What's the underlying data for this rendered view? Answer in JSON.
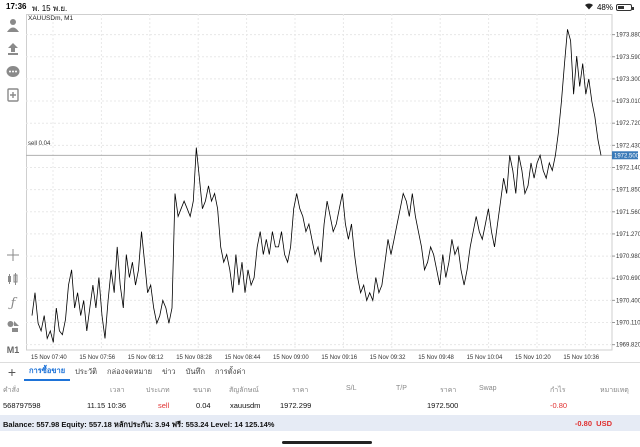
{
  "status": {
    "time": "17:36",
    "date": "พ. 15 พ.ย.",
    "battery": "48%",
    "battery_level": 0.48
  },
  "chart": {
    "symbol": "XAUUSDm, M1",
    "order_line_label": "sell 0.04",
    "current_price": "1972.500",
    "colors": {
      "line": "#000000",
      "price_box": "#3a7ab8",
      "order_line": "#b0b0b0"
    }
  },
  "chart_data": {
    "type": "line",
    "title": "",
    "xlabel": "",
    "ylabel": "",
    "ylim": [
      1969.75,
      1974.15
    ],
    "y_ticks": [
      "1973.880",
      "1973.590",
      "1973.300",
      "1973.010",
      "1972.720",
      "1972.430",
      "1972.140",
      "1971.850",
      "1971.560",
      "1971.270",
      "1970.980",
      "1970.690",
      "1970.400",
      "1970.110",
      "1969.820"
    ],
    "y_tick_values": [
      1973.88,
      1973.59,
      1973.3,
      1973.01,
      1972.72,
      1972.43,
      1972.14,
      1971.85,
      1971.56,
      1971.27,
      1970.98,
      1970.69,
      1970.4,
      1970.11,
      1969.82
    ],
    "x_ticks": [
      "15 Nov 07:40",
      "15 Nov 07:56",
      "15 Nov 08:12",
      "15 Nov 08:28",
      "15 Nov 08:44",
      "15 Nov 09:00",
      "15 Nov 09:16",
      "15 Nov 09:32",
      "15 Nov 09:48",
      "15 Nov 10:04",
      "15 Nov 10:20",
      "15 Nov 10:36"
    ],
    "order_price": 1972.299,
    "series": [
      {
        "values": [
          1970.2,
          1970.5,
          1970.1,
          1970.0,
          1970.2,
          1969.9,
          1970.0,
          1969.85,
          1970.3,
          1970.0,
          1969.95,
          1970.15,
          1970.6,
          1970.8,
          1970.3,
          1970.5,
          1970.2,
          1970.4,
          1970.0,
          1970.3,
          1970.6,
          1970.3,
          1970.7,
          1970.2,
          1969.9,
          1970.4,
          1970.8,
          1970.5,
          1971.1,
          1970.6,
          1970.3,
          1971.0,
          1970.7,
          1970.9,
          1970.6,
          1970.8,
          1971.3,
          1970.9,
          1970.5,
          1970.6,
          1970.3,
          1970.1,
          1970.2,
          1970.4,
          1970.3,
          1970.1,
          1970.3,
          1971.8,
          1971.5,
          1971.6,
          1971.7,
          1971.6,
          1971.5,
          1971.7,
          1972.4,
          1972.0,
          1971.6,
          1971.7,
          1971.9,
          1971.7,
          1971.8,
          1971.6,
          1971.1,
          1970.9,
          1971.0,
          1970.8,
          1970.5,
          1971.0,
          1970.6,
          1970.9,
          1970.5,
          1970.8,
          1970.6,
          1970.7,
          1971.1,
          1971.3,
          1971.0,
          1971.2,
          1971.0,
          1971.3,
          1971.1,
          1971.1,
          1971.3,
          1971.0,
          1970.9,
          1971.1,
          1971.6,
          1971.8,
          1971.6,
          1971.5,
          1971.3,
          1971.4,
          1971.2,
          1971.0,
          1971.1,
          1970.9,
          1971.4,
          1971.7,
          1971.5,
          1971.3,
          1971.4,
          1971.6,
          1971.8,
          1971.4,
          1971.2,
          1971.4,
          1971.0,
          1970.7,
          1970.5,
          1970.6,
          1970.4,
          1970.5,
          1970.4,
          1970.7,
          1970.5,
          1970.6,
          1970.9,
          1971.2,
          1971.0,
          1971.2,
          1971.4,
          1971.6,
          1971.8,
          1971.7,
          1971.5,
          1971.8,
          1971.5,
          1971.3,
          1971.1,
          1970.8,
          1970.9,
          1971.1,
          1971.0,
          1970.8,
          1970.6,
          1971.0,
          1970.7,
          1970.9,
          1971.2,
          1971.0,
          1971.1,
          1970.8,
          1970.6,
          1970.8,
          1971.1,
          1971.3,
          1971.5,
          1971.3,
          1971.2,
          1971.4,
          1971.6,
          1971.3,
          1971.1,
          1971.4,
          1971.7,
          1972.0,
          1971.8,
          1972.3,
          1972.1,
          1971.8,
          1972.3,
          1972.1,
          1971.8,
          1971.9,
          1972.2,
          1972.0,
          1972.2,
          1972.3,
          1972.1,
          1972.0,
          1972.2,
          1972.1,
          1972.3,
          1972.6,
          1973.0,
          1973.5,
          1973.95,
          1973.8,
          1973.1,
          1973.6,
          1973.2,
          1973.5,
          1973.1,
          1973.3,
          1973.0,
          1972.8,
          1972.5,
          1972.3
        ]
      }
    ],
    "grid": true
  },
  "toolbar": {
    "icons": [
      "person-icon",
      "share-icon",
      "chat-icon",
      "add-page-icon",
      "crosshair-icon",
      "candle-icon",
      "function-icon",
      "objects-icon"
    ],
    "timeframe": "M1"
  },
  "bottom": {
    "tabs": [
      {
        "label": "การซื้อขาย",
        "active": true
      },
      {
        "label": "ประวัติ",
        "active": false
      },
      {
        "label": "กล่องจดหมาย",
        "active": false
      },
      {
        "label": "ข่าว",
        "active": false
      },
      {
        "label": "บันทึก",
        "active": false
      },
      {
        "label": "การตั้งค่า",
        "active": false
      }
    ],
    "columns": [
      "คำสั่ง",
      "เวลา",
      "ประเภท",
      "ขนาด",
      "สัญลักษณ์",
      "ราคา",
      "S/L",
      "T/P",
      "ราคา",
      "Swap",
      "กำไร",
      "หมายเหตุ"
    ],
    "position": {
      "ticket": "568797598",
      "time": "11.15 10:36",
      "type": "sell",
      "size": "0.04",
      "symbol": "xauusdm",
      "open_price": "1972.299",
      "current_price": "1972.500",
      "profit": "-0.80"
    },
    "balance_text": "Balance: 557.98 Equity: 557.18 หลักประกัน: 3.94 ฟรี: 553.24 Level: 14 125.14%",
    "balance_profit": "-0.80",
    "currency": "USD"
  }
}
